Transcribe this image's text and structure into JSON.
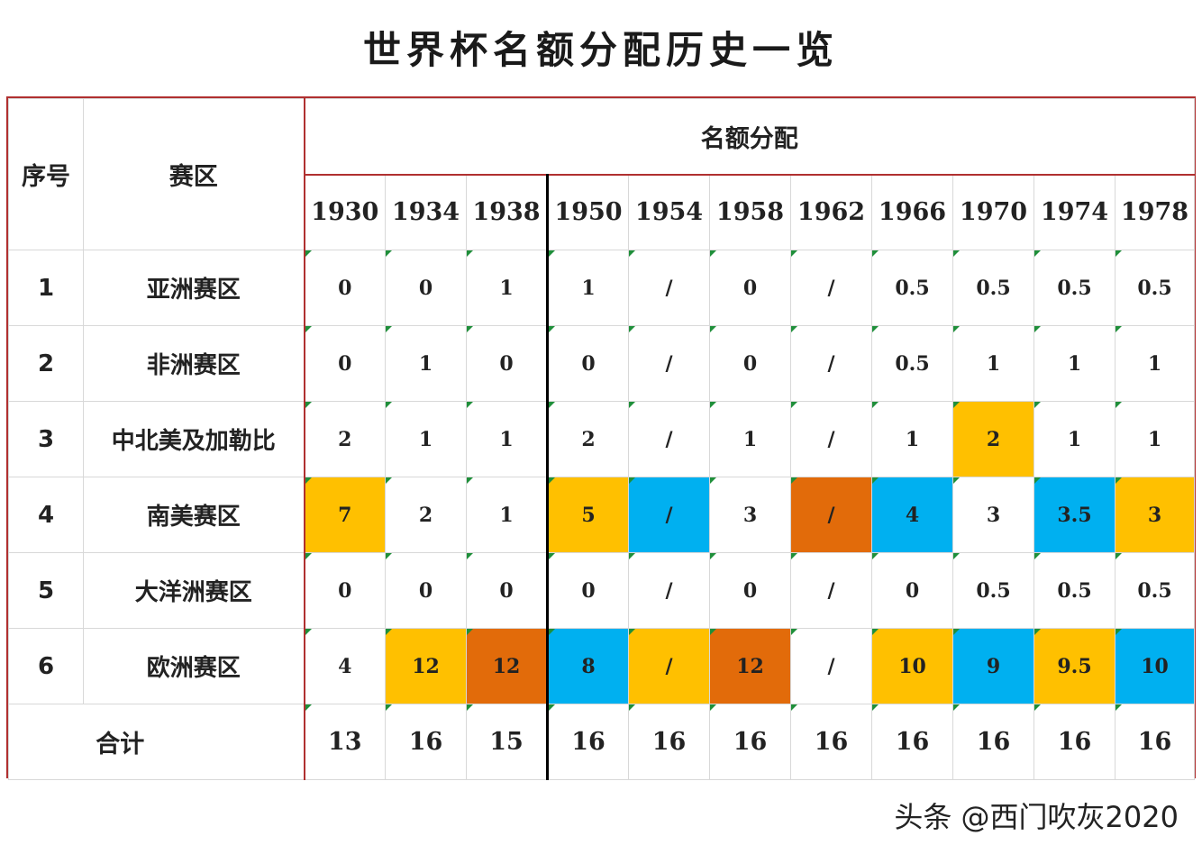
{
  "title": "世界杯名额分配历史一览",
  "header": {
    "index_label": "序号",
    "region_label": "赛区",
    "allocation_label": "名额分配",
    "total_label": "合计"
  },
  "years": [
    "1930",
    "1934",
    "1938",
    "1950",
    "1954",
    "1958",
    "1962",
    "1966",
    "1970",
    "1974",
    "1978"
  ],
  "rows": [
    {
      "index": "1",
      "region": "亚洲赛区",
      "values": [
        "0",
        "0",
        "1",
        "1",
        "/",
        "0",
        "/",
        "0.5",
        "0.5",
        "0.5",
        "0.5"
      ],
      "highlights": [
        "",
        "",
        "",
        "",
        "",
        "",
        "",
        "",
        "",
        "",
        ""
      ]
    },
    {
      "index": "2",
      "region": "非洲赛区",
      "values": [
        "0",
        "1",
        "0",
        "0",
        "/",
        "0",
        "/",
        "0.5",
        "1",
        "1",
        "1"
      ],
      "highlights": [
        "",
        "",
        "",
        "",
        "",
        "",
        "",
        "",
        "",
        "",
        ""
      ]
    },
    {
      "index": "3",
      "region": "中北美及加勒比",
      "values": [
        "2",
        "1",
        "1",
        "2",
        "/",
        "1",
        "/",
        "1",
        "2",
        "1",
        "1"
      ],
      "highlights": [
        "",
        "",
        "",
        "",
        "",
        "",
        "",
        "",
        "yellow",
        "",
        ""
      ]
    },
    {
      "index": "4",
      "region": "南美赛区",
      "values": [
        "7",
        "2",
        "1",
        "5",
        "/",
        "3",
        "/",
        "4",
        "3",
        "3.5",
        "3"
      ],
      "highlights": [
        "yellow",
        "",
        "",
        "yellow",
        "blue",
        "",
        "orange",
        "blue",
        "",
        "blue",
        "yellow"
      ]
    },
    {
      "index": "5",
      "region": "大洋洲赛区",
      "values": [
        "0",
        "0",
        "0",
        "0",
        "/",
        "0",
        "/",
        "0",
        "0.5",
        "0.5",
        "0.5"
      ],
      "highlights": [
        "",
        "",
        "",
        "",
        "",
        "",
        "",
        "",
        "",
        "",
        ""
      ]
    },
    {
      "index": "6",
      "region": "欧洲赛区",
      "values": [
        "4",
        "12",
        "12",
        "8",
        "/",
        "12",
        "/",
        "10",
        "9",
        "9.5",
        "10"
      ],
      "highlights": [
        "",
        "yellow",
        "orange",
        "blue",
        "yellow",
        "orange",
        "",
        "yellow",
        "blue",
        "yellow",
        "blue"
      ]
    }
  ],
  "totals": [
    "13",
    "16",
    "15",
    "16",
    "16",
    "16",
    "16",
    "16",
    "16",
    "16",
    "16"
  ],
  "colors": {
    "yellow": "#ffc000",
    "blue": "#00b0f0",
    "orange": "#e26b0a",
    "border_red": "#b03030",
    "corner_green": "#1f8f3a"
  },
  "watermark": "头条 @西门吹灰2020"
}
